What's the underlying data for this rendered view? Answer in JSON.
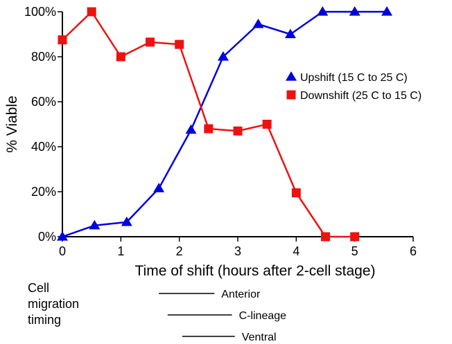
{
  "chart_data": {
    "type": "line",
    "title": "",
    "xlabel": "Time of shift (hours after 2-cell stage)",
    "ylabel": "% Viable",
    "xlim": [
      0,
      6
    ],
    "ylim": [
      0,
      100
    ],
    "x_ticks": [
      0,
      1,
      2,
      3,
      4,
      5,
      6
    ],
    "x_tick_labels": [
      "0",
      "1",
      "2",
      "3",
      "4",
      "5",
      "6"
    ],
    "y_ticks": [
      0,
      20,
      40,
      60,
      80,
      100
    ],
    "y_tick_labels": [
      "0%",
      "20%",
      "40%",
      "60%",
      "80%",
      "100%"
    ],
    "grid": false,
    "legend_position": "right",
    "series": [
      {
        "name": "Upshift (15 C to 25 C)",
        "color": "#0000dd",
        "marker": "triangle",
        "x": [
          0,
          0.55,
          1.1,
          1.65,
          2.2,
          2.75,
          3.35,
          3.9,
          4.45,
          5.0,
          5.55
        ],
        "y": [
          0,
          5,
          6.5,
          21.5,
          47.5,
          80,
          94.5,
          90,
          100,
          100,
          100
        ]
      },
      {
        "name": "Downshift (25 C to 15 C)",
        "color": "#ee1111",
        "marker": "square",
        "x": [
          0,
          0.5,
          1.0,
          1.5,
          2.0,
          2.5,
          3.0,
          3.5,
          4.0,
          4.5,
          5.0
        ],
        "y": [
          87.5,
          100,
          80,
          86.5,
          85.5,
          48,
          47,
          50,
          19.5,
          0,
          0
        ]
      }
    ],
    "migration_timing": {
      "heading": [
        "Cell",
        "migration",
        "timing"
      ],
      "bars": [
        {
          "label": "Anterior",
          "start": 1.65,
          "end": 2.6
        },
        {
          "label": "C-lineage",
          "start": 1.8,
          "end": 2.9
        },
        {
          "label": "Ventral",
          "start": 2.05,
          "end": 2.95
        }
      ]
    }
  }
}
